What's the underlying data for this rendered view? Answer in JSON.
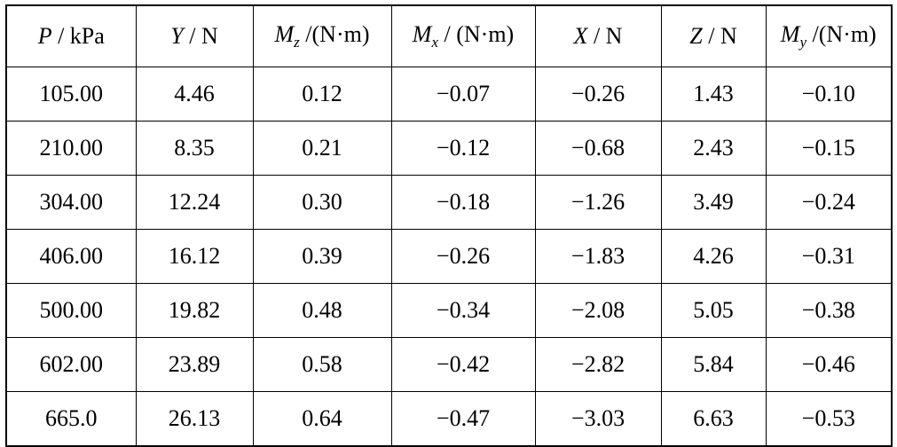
{
  "table": {
    "headers": [
      {
        "symbol": "P",
        "sub": "",
        "unit": " / kPa"
      },
      {
        "symbol": "Y",
        "sub": "",
        "unit": " / N"
      },
      {
        "symbol": "M",
        "sub": "z",
        "unit": " /(N·m)"
      },
      {
        "symbol": "M",
        "sub": "x",
        "unit": " / (N·m)"
      },
      {
        "symbol": "X",
        "sub": "",
        "unit": " / N"
      },
      {
        "symbol": "Z",
        "sub": "",
        "unit": " / N"
      },
      {
        "symbol": "M",
        "sub": "y",
        "unit": " /(N·m)"
      }
    ],
    "rows": [
      [
        "105.00",
        "4.46",
        "0.12",
        "−0.07",
        "−0.26",
        "1.43",
        "−0.10"
      ],
      [
        "210.00",
        "8.35",
        "0.21",
        "−0.12",
        "−0.68",
        "2.43",
        "−0.15"
      ],
      [
        "304.00",
        "12.24",
        "0.30",
        "−0.18",
        "−1.26",
        "3.49",
        "−0.24"
      ],
      [
        "406.00",
        "16.12",
        "0.39",
        "−0.26",
        "−1.83",
        "4.26",
        "−0.31"
      ],
      [
        "500.00",
        "19.82",
        "0.48",
        "−0.34",
        "−2.08",
        "5.05",
        "−0.38"
      ],
      [
        "602.00",
        "23.89",
        "0.58",
        "−0.42",
        "−2.82",
        "5.84",
        "−0.46"
      ],
      [
        "665.0",
        "26.13",
        "0.64",
        "−0.47",
        "−3.03",
        "6.63",
        "−0.53"
      ]
    ]
  }
}
